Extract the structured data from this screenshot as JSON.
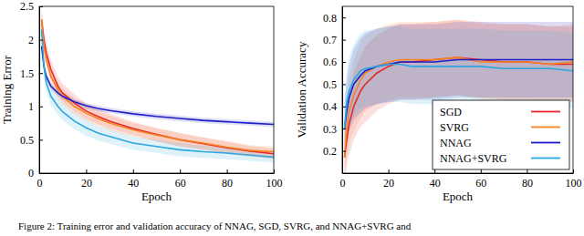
{
  "caption": "Figure 2: Training error and validation accuracy of NNAG, SGD, SVRG, and NNAG+SVRG and",
  "chart_data": [
    {
      "type": "line",
      "xlabel": "Epoch",
      "ylabel": "Training Error",
      "xlim": [
        0,
        100
      ],
      "ylim": [
        0,
        2.5
      ],
      "xticks": [
        0,
        20,
        40,
        60,
        80,
        100
      ],
      "yticks": [
        0,
        0.5,
        1,
        1.5,
        2,
        2.5
      ],
      "x": [
        1,
        2,
        3,
        5,
        8,
        10,
        15,
        20,
        25,
        30,
        40,
        50,
        60,
        70,
        80,
        90,
        100
      ],
      "series": [
        {
          "color": "#e8262a",
          "values": [
            2.3,
            2.0,
            1.8,
            1.55,
            1.3,
            1.2,
            1.05,
            0.93,
            0.85,
            0.78,
            0.67,
            0.58,
            0.5,
            0.44,
            0.38,
            0.33,
            0.29
          ],
          "error": [
            0.15,
            0.15,
            0.15,
            0.15,
            0.14,
            0.14,
            0.13,
            0.12,
            0.12,
            0.11,
            0.1,
            0.1,
            0.1,
            0.09,
            0.09,
            0.08,
            0.08
          ]
        },
        {
          "color": "#f58220",
          "values": [
            2.3,
            1.9,
            1.7,
            1.45,
            1.25,
            1.15,
            1.0,
            0.9,
            0.82,
            0.75,
            0.65,
            0.57,
            0.5,
            0.45,
            0.39,
            0.34,
            0.32
          ],
          "error": [
            0.15,
            0.15,
            0.15,
            0.14,
            0.14,
            0.13,
            0.12,
            0.12,
            0.11,
            0.11,
            0.1,
            0.1,
            0.1,
            0.09,
            0.09,
            0.08,
            0.08
          ]
        },
        {
          "color": "#1e1ec8",
          "values": [
            1.9,
            1.6,
            1.45,
            1.3,
            1.2,
            1.15,
            1.07,
            1.01,
            0.97,
            0.94,
            0.89,
            0.85,
            0.82,
            0.79,
            0.77,
            0.75,
            0.73
          ],
          "error": [
            0.06,
            0.06,
            0.05,
            0.05,
            0.05,
            0.05,
            0.04,
            0.04,
            0.04,
            0.04,
            0.04,
            0.04,
            0.04,
            0.04,
            0.04,
            0.04,
            0.04
          ]
        },
        {
          "color": "#2aa7e0",
          "values": [
            2.15,
            1.6,
            1.35,
            1.15,
            1.0,
            0.92,
            0.78,
            0.68,
            0.6,
            0.55,
            0.45,
            0.4,
            0.35,
            0.32,
            0.3,
            0.27,
            0.24
          ],
          "error": [
            0.15,
            0.15,
            0.14,
            0.14,
            0.13,
            0.13,
            0.12,
            0.12,
            0.11,
            0.11,
            0.1,
            0.1,
            0.1,
            0.09,
            0.09,
            0.09,
            0.08
          ]
        }
      ]
    },
    {
      "type": "line",
      "xlabel": "Epoch",
      "ylabel": "Validation Accuracy",
      "xlim": [
        0,
        100
      ],
      "ylim": [
        0.1,
        0.85
      ],
      "xticks": [
        0,
        20,
        40,
        60,
        80,
        100
      ],
      "yticks": [
        0.2,
        0.3,
        0.4,
        0.5,
        0.6,
        0.7,
        0.8
      ],
      "legend": "lower right",
      "x": [
        1,
        2,
        3,
        5,
        8,
        10,
        15,
        20,
        25,
        30,
        40,
        50,
        60,
        70,
        80,
        90,
        100
      ],
      "series": [
        {
          "name": "SGD",
          "color": "#e8262a",
          "values": [
            0.17,
            0.25,
            0.32,
            0.4,
            0.47,
            0.5,
            0.55,
            0.58,
            0.6,
            0.6,
            0.61,
            0.62,
            0.61,
            0.6,
            0.6,
            0.59,
            0.59
          ],
          "error": [
            0.1,
            0.12,
            0.14,
            0.15,
            0.16,
            0.17,
            0.17,
            0.17,
            0.17,
            0.17,
            0.17,
            0.17,
            0.17,
            0.17,
            0.17,
            0.17,
            0.17
          ]
        },
        {
          "name": "SVRG",
          "color": "#f58220",
          "values": [
            0.17,
            0.3,
            0.38,
            0.45,
            0.52,
            0.55,
            0.58,
            0.6,
            0.61,
            0.61,
            0.61,
            0.62,
            0.6,
            0.6,
            0.6,
            0.59,
            0.6
          ],
          "error": [
            0.1,
            0.13,
            0.15,
            0.16,
            0.17,
            0.17,
            0.17,
            0.17,
            0.17,
            0.17,
            0.17,
            0.17,
            0.17,
            0.17,
            0.17,
            0.17,
            0.17
          ]
        },
        {
          "name": "NNAG",
          "color": "#1e1ec8",
          "values": [
            0.3,
            0.38,
            0.44,
            0.5,
            0.54,
            0.56,
            0.58,
            0.59,
            0.6,
            0.6,
            0.6,
            0.61,
            0.61,
            0.61,
            0.61,
            0.61,
            0.61
          ],
          "error": [
            0.12,
            0.14,
            0.15,
            0.16,
            0.17,
            0.17,
            0.17,
            0.17,
            0.17,
            0.17,
            0.17,
            0.17,
            0.17,
            0.17,
            0.17,
            0.17,
            0.17
          ]
        },
        {
          "name": "NNAG+SVRG",
          "color": "#2aa7e0",
          "values": [
            0.3,
            0.42,
            0.47,
            0.52,
            0.56,
            0.57,
            0.58,
            0.59,
            0.59,
            0.58,
            0.58,
            0.58,
            0.58,
            0.57,
            0.57,
            0.57,
            0.56
          ],
          "error": [
            0.12,
            0.14,
            0.15,
            0.16,
            0.17,
            0.17,
            0.17,
            0.17,
            0.17,
            0.17,
            0.17,
            0.17,
            0.17,
            0.17,
            0.17,
            0.17,
            0.17
          ]
        }
      ]
    }
  ]
}
